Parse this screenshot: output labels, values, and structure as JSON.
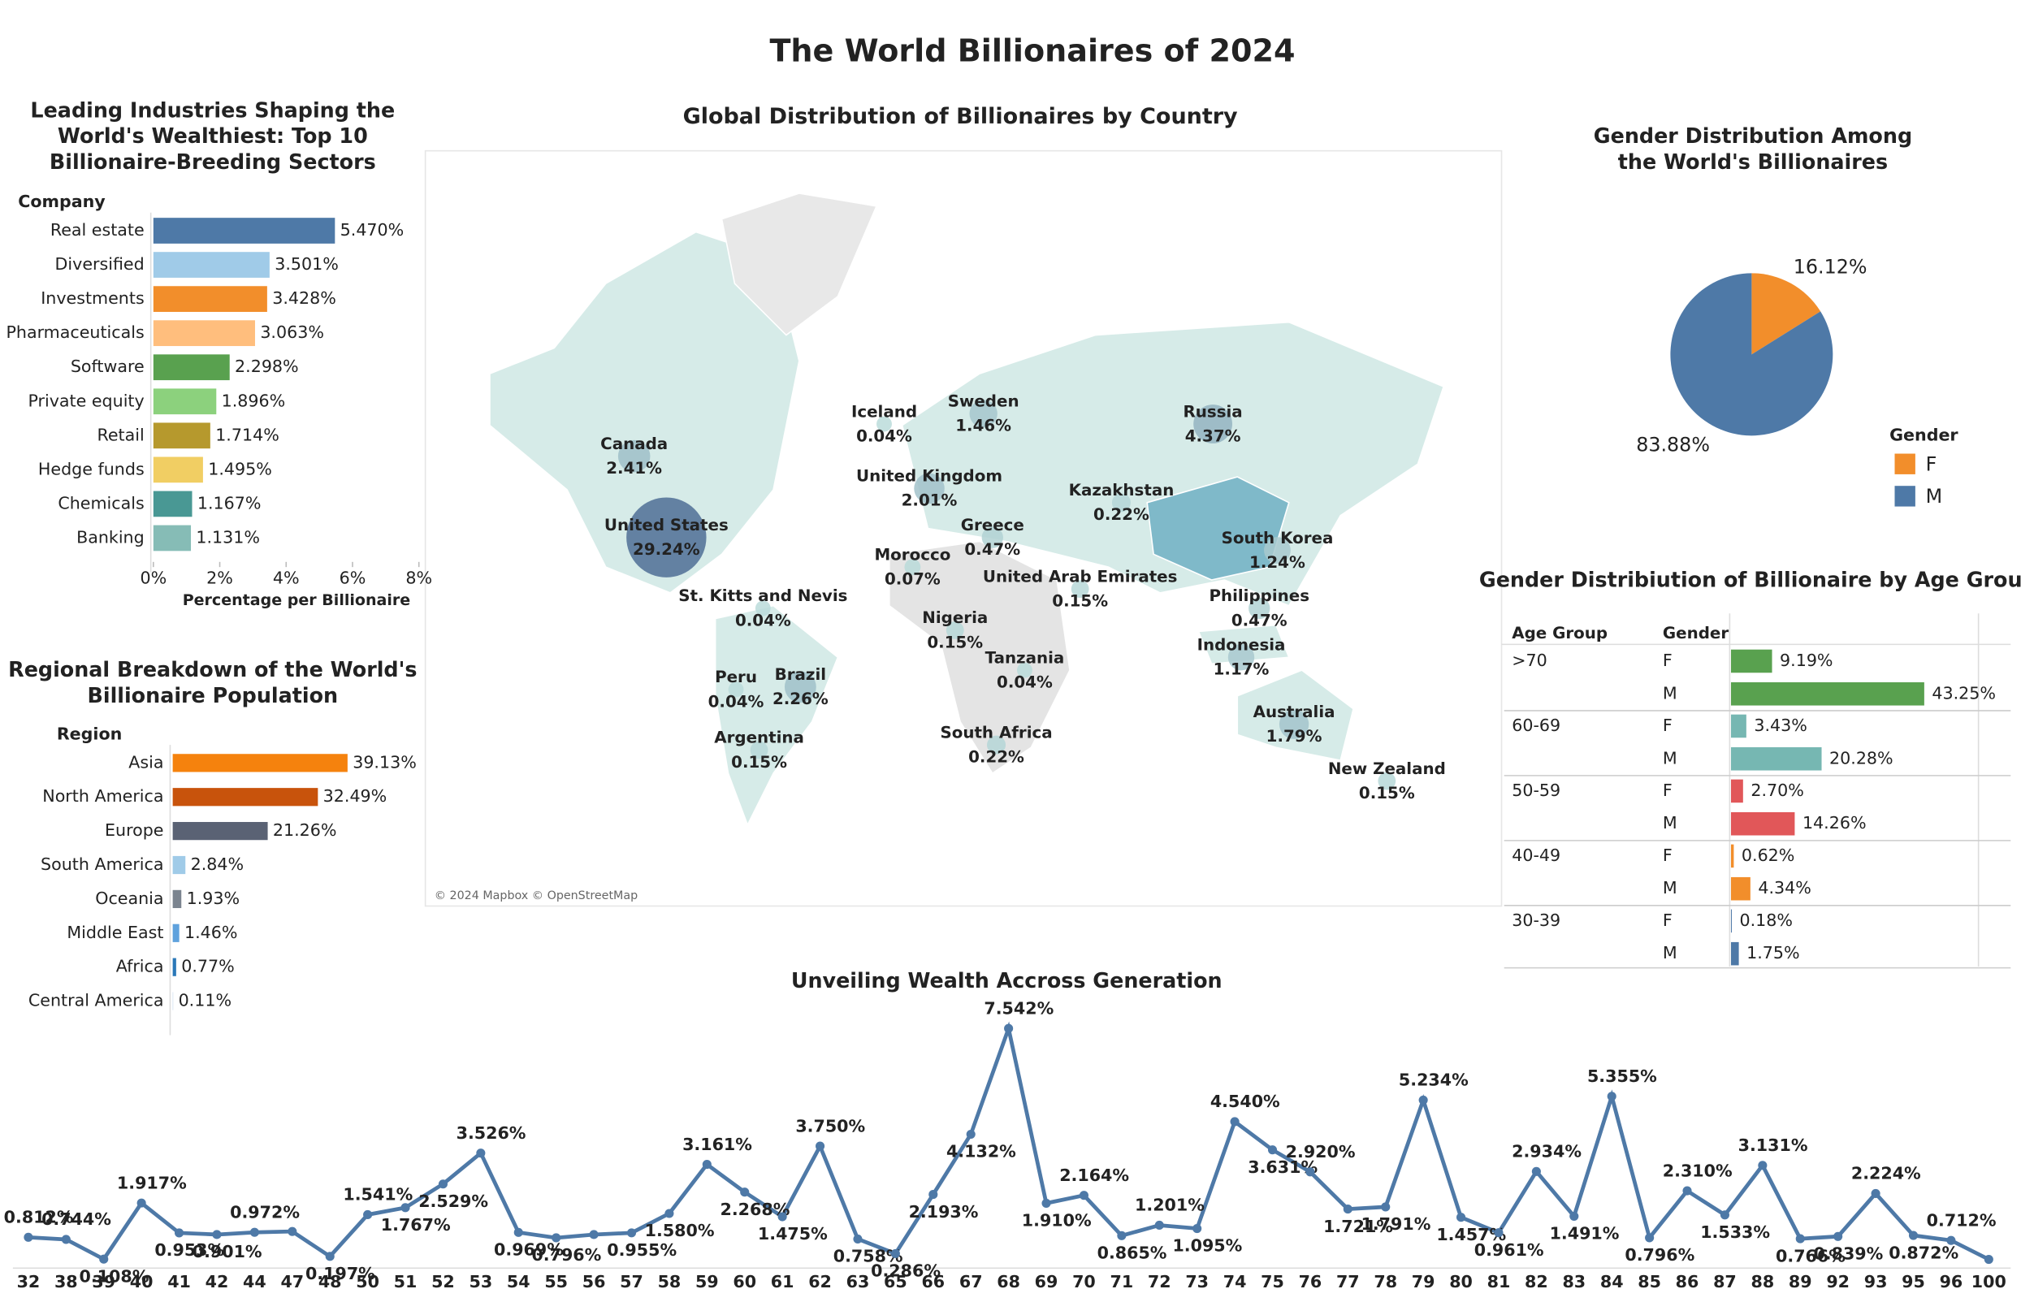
{
  "title": "The World Billionaires of 2024",
  "chart_data": [
    {
      "type": "hbar",
      "title": "Leading Industries Shaping the World's Wealthiest: Top 10 Billionaire-Breeding Sectors",
      "header": "Company",
      "x_label": "Percentage per Billionaire",
      "categories": [
        "Real estate",
        "Diversified",
        "Investments",
        "Pharmaceuticals",
        "Software",
        "Private equity",
        "Retail",
        "Hedge funds",
        "Chemicals",
        "Banking"
      ],
      "values": [
        5.47,
        3.501,
        3.428,
        3.063,
        2.298,
        1.896,
        1.714,
        1.495,
        1.167,
        1.131
      ],
      "value_labels": [
        "5.470%",
        "3.501%",
        "3.428%",
        "3.063%",
        "2.298%",
        "1.896%",
        "1.714%",
        "1.495%",
        "1.167%",
        "1.131%"
      ],
      "colors": [
        "#4e79a7",
        "#a0cbe8",
        "#f28e2b",
        "#ffbe7d",
        "#59a14f",
        "#8cd17d",
        "#b6992d",
        "#f1ce63",
        "#499894",
        "#86bcb6"
      ],
      "xlim": [
        0,
        8
      ],
      "xticks": [
        {
          "value": 0,
          "label": "0%"
        },
        {
          "value": 2,
          "label": "2%"
        },
        {
          "value": 4,
          "label": "4%"
        },
        {
          "value": 6,
          "label": "6%"
        },
        {
          "value": 8,
          "label": "8%"
        }
      ]
    },
    {
      "type": "hbar",
      "title": "Regional Breakdown of the World's Billionaire Population",
      "header": "Region",
      "categories": [
        "Asia",
        "North America",
        "Europe",
        "South America",
        "Oceania",
        "Middle East",
        "Africa",
        "Central America"
      ],
      "values": [
        39.13,
        32.49,
        21.26,
        2.84,
        1.93,
        1.46,
        0.77,
        0.11
      ],
      "value_labels": [
        "39.13%",
        "32.49%",
        "21.26%",
        "2.84%",
        "1.93%",
        "1.46%",
        "0.77%",
        "0.11%"
      ],
      "colors": [
        "#f5820d",
        "#c8530c",
        "#5a6274",
        "#a0cbe8",
        "#7b848f",
        "#5fa2dd",
        "#2a78b8",
        "#c5d9ec"
      ],
      "xlim": [
        0,
        45
      ]
    },
    {
      "type": "map",
      "title": "Global Distribution of Billionaires by Country",
      "attribution": "© 2024 Mapbox © OpenStreetMap",
      "countries": [
        "Canada",
        "United States",
        "Iceland",
        "Sweden",
        "Russia",
        "United Kingdom",
        "Kazakhstan",
        "Greece",
        "Morocco",
        "United Arab Emirates",
        "South Korea",
        "St. Kitts and Nevis",
        "Nigeria",
        "Philippines",
        "Indonesia",
        "Tanzania",
        "Peru",
        "Brazil",
        "Argentina",
        "South Africa",
        "Australia",
        "New Zealand"
      ],
      "values": [
        2.41,
        29.24,
        0.04,
        1.46,
        4.37,
        2.01,
        0.22,
        0.47,
        0.07,
        0.15,
        1.24,
        0.04,
        0.15,
        0.47,
        1.17,
        0.04,
        0.04,
        2.26,
        0.15,
        0.22,
        1.79,
        0.15
      ],
      "value_labels": [
        "2.41%",
        "29.24%",
        "0.04%",
        "1.46%",
        "4.37%",
        "2.01%",
        "0.22%",
        "0.47%",
        "0.07%",
        "0.15%",
        "1.24%",
        "0.04%",
        "0.15%",
        "0.47%",
        "1.17%",
        "0.04%",
        "0.04%",
        "2.26%",
        "0.15%",
        "0.22%",
        "1.79%",
        "0.15%"
      ],
      "color_range": [
        "#bfe0dd",
        "#4f6f95"
      ]
    },
    {
      "type": "pie",
      "title": "Gender Distribution Among the World's Billionaires",
      "legend_title": "Gender",
      "categories": [
        "F",
        "M"
      ],
      "values": [
        16.12,
        83.88
      ],
      "value_labels": [
        "16.12%",
        "83.88%"
      ],
      "colors": [
        "#f28e2b",
        "#4e79a7"
      ]
    },
    {
      "type": "grouped_hbar",
      "title": "Gender Distribiution of Billionaire by Age Group",
      "headers": [
        "Age Group",
        "Gender"
      ],
      "categories": [
        ">70",
        "60-69",
        "50-59",
        "40-49",
        "30-39"
      ],
      "colors": [
        "#59a14f",
        "#76b7b2",
        "#e15759",
        "#f28e2b",
        "#4e79a7"
      ],
      "series": [
        {
          "name": "F",
          "values": [
            9.19,
            3.43,
            2.7,
            0.62,
            0.18
          ],
          "value_labels": [
            "9.19%",
            "3.43%",
            "2.70%",
            "0.62%",
            "0.18%"
          ]
        },
        {
          "name": "M",
          "values": [
            43.25,
            20.28,
            14.26,
            4.34,
            1.75
          ],
          "value_labels": [
            "43.25%",
            "20.28%",
            "14.26%",
            "4.34%",
            "1.75%"
          ]
        }
      ],
      "xlim": [
        0,
        45
      ]
    },
    {
      "type": "line",
      "title": "Unveiling Wealth Accross Generation",
      "color": "#4e79a7",
      "categories": [
        32,
        38,
        39,
        40,
        41,
        42,
        44,
        47,
        48,
        50,
        51,
        52,
        53,
        54,
        55,
        56,
        57,
        58,
        59,
        60,
        61,
        62,
        63,
        65,
        66,
        67,
        68,
        69,
        70,
        71,
        72,
        73,
        74,
        75,
        76,
        77,
        78,
        79,
        80,
        81,
        82,
        83,
        84,
        85,
        86,
        87,
        88,
        89,
        92,
        93,
        95,
        96,
        100
      ],
      "values": [
        0.812,
        0.744,
        0.108,
        1.917,
        0.953,
        0.901,
        0.972,
        1.0,
        0.197,
        1.541,
        1.767,
        2.529,
        3.526,
        0.969,
        0.796,
        0.9,
        0.955,
        1.58,
        3.161,
        2.268,
        1.475,
        3.75,
        0.758,
        0.286,
        2.193,
        4.132,
        7.542,
        1.91,
        2.164,
        0.865,
        1.201,
        1.095,
        4.54,
        3.631,
        2.92,
        1.721,
        1.791,
        5.234,
        1.457,
        0.961,
        2.934,
        1.491,
        5.355,
        0.796,
        2.31,
        1.533,
        3.131,
        0.766,
        0.839,
        2.224,
        0.872,
        0.712,
        0.1
      ],
      "value_labels": [
        "0.812%",
        "0.744%",
        "0.108%",
        "1.917%",
        "0.953%",
        "0.901%",
        "0.972%",
        null,
        "0.197%",
        "1.541%",
        "1.767%",
        "2.529%",
        "3.526%",
        "0.969%",
        "0.796%",
        null,
        "0.955%",
        "1.580%",
        "3.161%",
        "2.268%",
        "1.475%",
        "3.750%",
        "0.758%",
        "0.286%",
        "2.193%",
        "4.132%",
        "7.542%",
        "1.910%",
        "2.164%",
        "0.865%",
        "1.201%",
        "1.095%",
        "4.540%",
        "3.631%",
        "2.920%",
        "1.721%",
        "1.791%",
        "5.234%",
        "1.457%",
        "0.961%",
        "2.934%",
        "1.491%",
        "5.355%",
        "0.796%",
        "2.310%",
        "1.533%",
        "3.131%",
        "0.766%",
        "0.839%",
        "2.224%",
        "0.872%",
        "0.712%",
        null
      ],
      "ylim": [
        0,
        7.8
      ]
    }
  ]
}
